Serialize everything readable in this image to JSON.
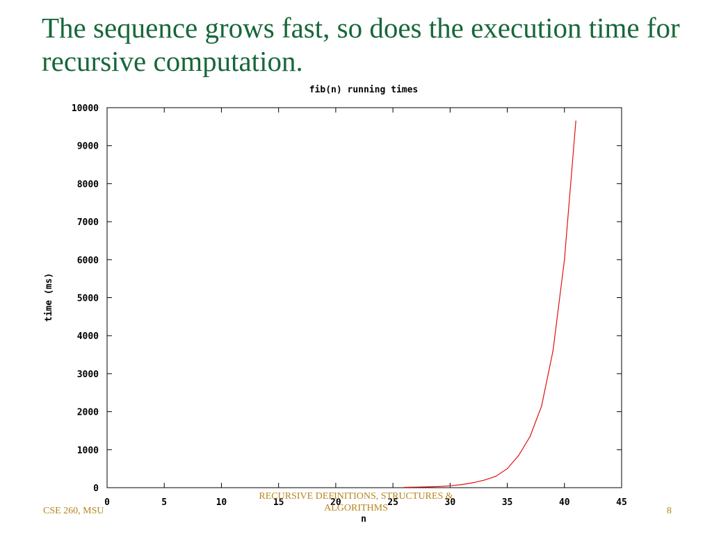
{
  "slide": {
    "title": "The sequence grows fast, so does the execution time for recursive computation.",
    "footer_left": "CSE 260, MSU",
    "footer_center": "RECURSIVE DEFINITIONS, STRUCTURES & ALGORITHMS",
    "page_number": "8"
  },
  "colors": {
    "title": "#17673a",
    "footer": "#b7851d",
    "series_line": "#e01010"
  },
  "chart_data": {
    "type": "line",
    "title": "fib(n) running times",
    "xlabel": "n",
    "ylabel": "time (ms)",
    "xlim": [
      0,
      45
    ],
    "ylim": [
      0,
      10000
    ],
    "x_ticks": [
      0,
      5,
      10,
      15,
      20,
      25,
      30,
      35,
      40,
      45
    ],
    "y_ticks": [
      0,
      1000,
      2000,
      3000,
      4000,
      5000,
      6000,
      7000,
      8000,
      9000,
      10000
    ],
    "grid": false,
    "series": [
      {
        "x": [
          26,
          27,
          28,
          29,
          30,
          31,
          32,
          33,
          34,
          35,
          36,
          37,
          38,
          39,
          40,
          41
        ],
        "y": [
          10,
          15,
          20,
          30,
          50,
          80,
          130,
          200,
          300,
          500,
          850,
          1350,
          2150,
          3600,
          6000,
          9650
        ]
      }
    ]
  }
}
